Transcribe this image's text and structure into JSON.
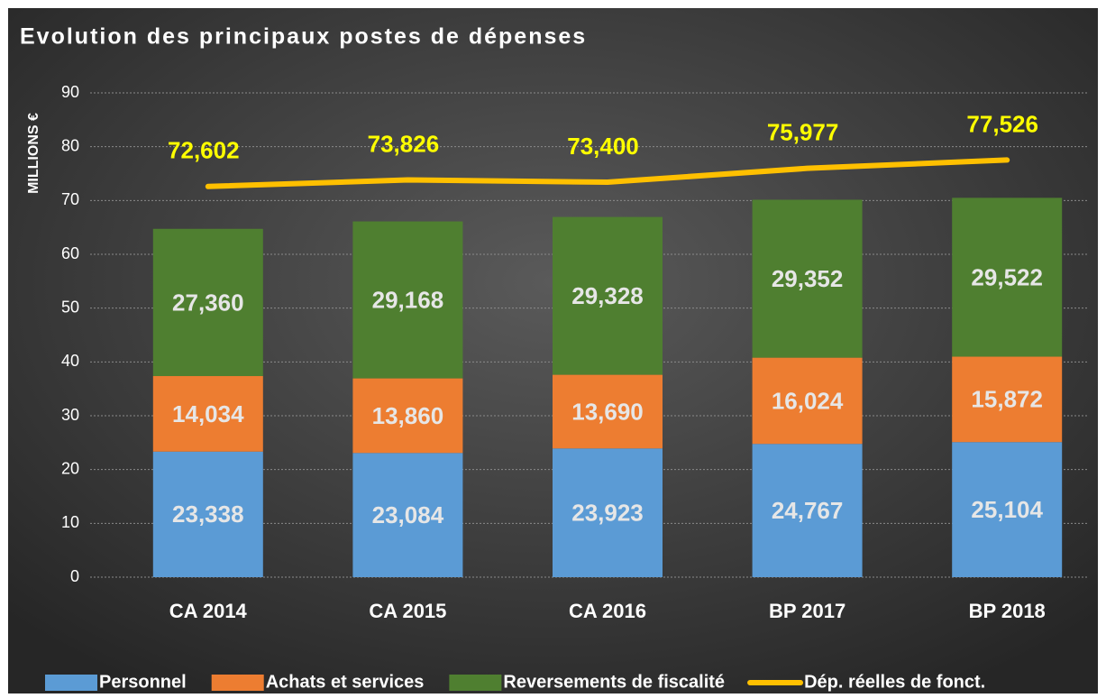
{
  "chart_data": {
    "type": "bar",
    "stacked": true,
    "title": "Evolution des principaux postes de dépenses",
    "y_label": "MILLIONS €",
    "categories": [
      "CA 2014",
      "CA 2015",
      "CA 2016",
      "BP 2017",
      "BP 2018"
    ],
    "series": [
      {
        "name": "Personnel",
        "color": "#5b9bd5",
        "values": [
          23.338,
          23.084,
          23.923,
          24.767,
          25.104
        ],
        "value_labels": [
          "23,338",
          "23,084",
          "23,923",
          "24,767",
          "25,104"
        ]
      },
      {
        "name": "Achats et services",
        "color": "#ed7d31",
        "values": [
          14.034,
          13.86,
          13.69,
          16.024,
          15.872
        ],
        "value_labels": [
          "14,034",
          "13,860",
          "13,690",
          "16,024",
          "15,872"
        ]
      },
      {
        "name": "Reversements de fiscalité",
        "color": "#4f7f30",
        "values": [
          27.36,
          29.168,
          29.328,
          29.352,
          29.522
        ],
        "value_labels": [
          "27,360",
          "29,168",
          "29,328",
          "29,352",
          "29,522"
        ]
      },
      {
        "name": "Dép. réelles de fonct.",
        "type": "line",
        "color": "#ffc000",
        "values": [
          72.602,
          73.826,
          73.4,
          75.977,
          77.526
        ],
        "value_labels": [
          "72,602",
          "73,826",
          "73,400",
          "75,977",
          "77,526"
        ]
      }
    ],
    "ylim": [
      0,
      90
    ],
    "yticks": [
      0,
      10,
      20,
      30,
      40,
      50,
      60,
      70,
      80,
      90
    ],
    "grid": true,
    "legend": "bottom"
  }
}
